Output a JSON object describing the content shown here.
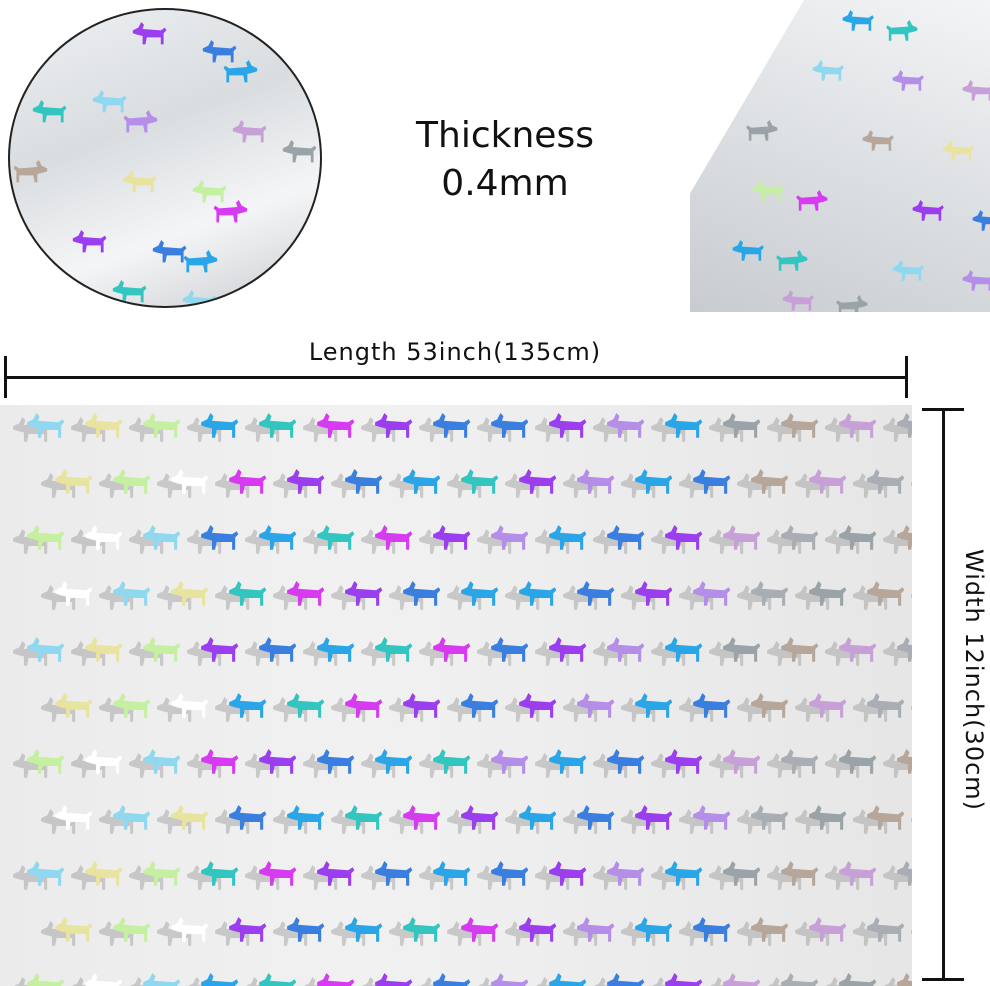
{
  "thickness": {
    "label": "Thickness",
    "value": "0.4mm"
  },
  "dimensions": {
    "length_label": "Length 53inch(135cm)",
    "width_label": "Width 12inch(30cm)"
  },
  "pattern": {
    "motif": "dog-silhouette-icon",
    "colors": [
      "#d63bf2",
      "#9b3ef0",
      "#3a7fe0",
      "#2aa6e8",
      "#33c6c0",
      "#8fd8f0",
      "#b48ee8",
      "#c8a0d8",
      "#9aa3a8",
      "#b7a79a",
      "#e9e3a0",
      "#c4f0a0"
    ]
  }
}
